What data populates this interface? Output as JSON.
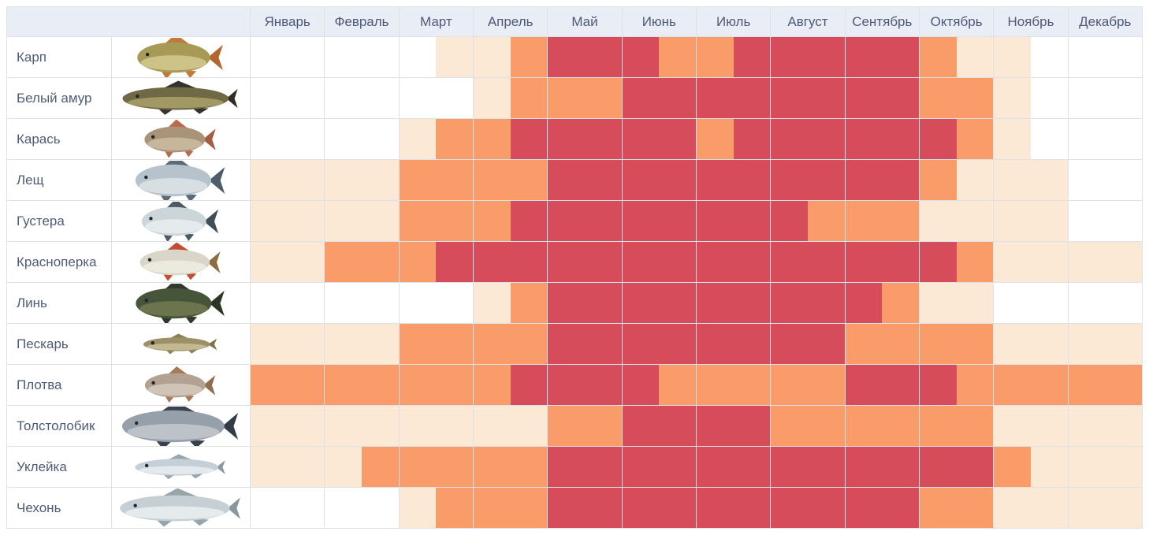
{
  "chart_data": {
    "type": "heatmap",
    "subject": "fish-biting-calendar",
    "resolution": "half-month",
    "months": [
      "Январь",
      "Февраль",
      "Март",
      "Апрель",
      "Май",
      "Июнь",
      "Июль",
      "Август",
      "Сентябрь",
      "Октябрь",
      "Ноябрь",
      "Декабрь"
    ],
    "levels": [
      "none",
      "low",
      "medium",
      "high"
    ],
    "level_colors": {
      "none": "#ffffff",
      "low": "#fbe9d5",
      "medium": "#f99c6a",
      "high": "#d64c5b"
    },
    "rows": [
      {
        "name": "Карп",
        "icon": "carp-fish-icon",
        "values": [
          0,
          0,
          0,
          0,
          0,
          1,
          1,
          2,
          3,
          3,
          3,
          2,
          2,
          3,
          3,
          3,
          3,
          3,
          2,
          1,
          1,
          0,
          0,
          0
        ]
      },
      {
        "name": "Белый амур",
        "icon": "grass-carp-fish-icon",
        "values": [
          0,
          0,
          0,
          0,
          0,
          0,
          1,
          2,
          2,
          2,
          3,
          3,
          3,
          3,
          3,
          3,
          3,
          3,
          2,
          2,
          1,
          0,
          0,
          0
        ]
      },
      {
        "name": "Карась",
        "icon": "crucian-carp-fish-icon",
        "values": [
          0,
          0,
          0,
          0,
          1,
          2,
          2,
          3,
          3,
          3,
          3,
          3,
          2,
          3,
          3,
          3,
          3,
          3,
          3,
          2,
          1,
          0,
          0,
          0
        ]
      },
      {
        "name": "Лещ",
        "icon": "bream-fish-icon",
        "values": [
          1,
          1,
          1,
          1,
          2,
          2,
          2,
          2,
          3,
          3,
          3,
          3,
          3,
          3,
          3,
          3,
          3,
          3,
          2,
          1,
          1,
          1,
          0,
          0
        ]
      },
      {
        "name": "Густера",
        "icon": "white-bream-fish-icon",
        "values": [
          1,
          1,
          1,
          1,
          2,
          2,
          2,
          3,
          3,
          3,
          3,
          3,
          3,
          3,
          3,
          2,
          2,
          2,
          1,
          1,
          1,
          1,
          0,
          0
        ]
      },
      {
        "name": "Красноперка",
        "icon": "rudd-fish-icon",
        "values": [
          1,
          1,
          2,
          2,
          2,
          3,
          3,
          3,
          3,
          3,
          3,
          3,
          3,
          3,
          3,
          3,
          3,
          3,
          3,
          2,
          1,
          1,
          1,
          1
        ]
      },
      {
        "name": "Линь",
        "icon": "tench-fish-icon",
        "values": [
          0,
          0,
          0,
          0,
          0,
          0,
          1,
          2,
          3,
          3,
          3,
          3,
          3,
          3,
          3,
          3,
          3,
          2,
          1,
          1,
          0,
          0,
          0,
          0
        ]
      },
      {
        "name": "Пескарь",
        "icon": "gudgeon-fish-icon",
        "values": [
          1,
          1,
          1,
          1,
          2,
          2,
          2,
          2,
          3,
          3,
          3,
          3,
          3,
          3,
          3,
          3,
          2,
          2,
          2,
          2,
          1,
          1,
          1,
          1
        ]
      },
      {
        "name": "Плотва",
        "icon": "roach-fish-icon",
        "values": [
          2,
          2,
          2,
          2,
          2,
          2,
          2,
          3,
          3,
          3,
          3,
          2,
          2,
          2,
          2,
          2,
          3,
          3,
          3,
          2,
          2,
          2,
          2,
          2
        ]
      },
      {
        "name": "Толстолобик",
        "icon": "silver-carp-fish-icon",
        "values": [
          1,
          1,
          1,
          1,
          1,
          1,
          1,
          1,
          2,
          2,
          3,
          3,
          3,
          3,
          2,
          2,
          2,
          2,
          2,
          2,
          1,
          1,
          1,
          1
        ]
      },
      {
        "name": "Уклейка",
        "icon": "bleak-fish-icon",
        "values": [
          1,
          1,
          1,
          2,
          2,
          2,
          2,
          2,
          3,
          3,
          3,
          3,
          3,
          3,
          3,
          3,
          3,
          3,
          3,
          3,
          2,
          1,
          1,
          1
        ]
      },
      {
        "name": "Чехонь",
        "icon": "sabrefish-fish-icon",
        "values": [
          0,
          0,
          0,
          0,
          1,
          2,
          2,
          2,
          3,
          3,
          3,
          3,
          3,
          3,
          3,
          3,
          3,
          3,
          2,
          2,
          1,
          1,
          1,
          1
        ]
      }
    ]
  },
  "ui": {
    "header_bg": "#e9edf5",
    "text_color": "#4d5b78",
    "border_color": "#dee2e6",
    "fish_art": [
      {
        "len": 96,
        "ht": 40,
        "body": "#a69a56",
        "belly": "#d9cf9a",
        "fin": "#c07a3a",
        "tail": "#b5652f"
      },
      {
        "len": 140,
        "ht": 30,
        "body": "#6f6a45",
        "belly": "#b3a86f",
        "fin": "#35322a",
        "tail": "#2f2d26"
      },
      {
        "len": 80,
        "ht": 34,
        "body": "#a9947a",
        "belly": "#cfc2a8",
        "fin": "#b96a4d",
        "tail": "#a45c42"
      },
      {
        "len": 100,
        "ht": 42,
        "body": "#b7c3cc",
        "belly": "#e2e8ea",
        "fin": "#5c6a76",
        "tail": "#4f5d68"
      },
      {
        "len": 85,
        "ht": 38,
        "body": "#ccd5d9",
        "belly": "#eef2f2",
        "fin": "#4d5a64",
        "tail": "#414e58"
      },
      {
        "len": 92,
        "ht": 34,
        "body": "#d9d6c9",
        "belly": "#f2efe4",
        "fin": "#c44c31",
        "tail": "#8f6b42"
      },
      {
        "len": 100,
        "ht": 40,
        "body": "#46543a",
        "belly": "#7a7f56",
        "fin": "#2f3a28",
        "tail": "#2c3626"
      },
      {
        "len": 88,
        "ht": 18,
        "body": "#9c9066",
        "belly": "#cfc6a2",
        "fin": "#8a7f55",
        "tail": "#7d7448"
      },
      {
        "len": 80,
        "ht": 32,
        "body": "#b3a292",
        "belly": "#d9cfc2",
        "fin": "#a8795a",
        "tail": "#8f6f52"
      },
      {
        "len": 135,
        "ht": 42,
        "body": "#96a0ab",
        "belly": "#c8cdd2",
        "fin": "#39424c",
        "tail": "#333c46"
      },
      {
        "len": 110,
        "ht": 22,
        "body": "#c4cfd8",
        "belly": "#eef1f4",
        "fin": "#9aa6ae",
        "tail": "#8d9aa2"
      },
      {
        "len": 145,
        "ht": 34,
        "body": "#c6d0d4",
        "belly": "#eff3f4",
        "fin": "#97a4aa",
        "tail": "#8a979e"
      }
    ]
  }
}
